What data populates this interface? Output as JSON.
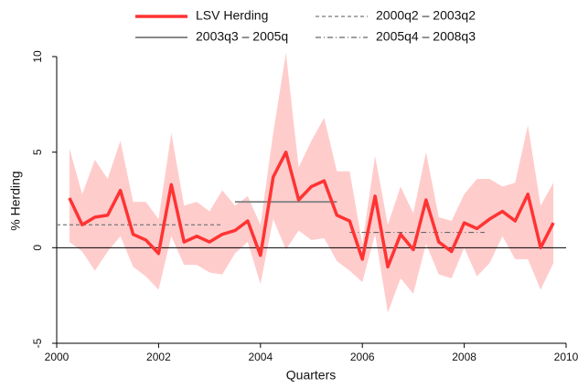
{
  "chart_data": {
    "type": "line",
    "x_label": "Quarters",
    "y_label": "% Herding",
    "xlim": [
      2000,
      2010
    ],
    "xticks": [
      2000,
      2002,
      2004,
      2006,
      2008,
      2010
    ],
    "ylim": [
      -5,
      10
    ],
    "yticks": [
      -5,
      0,
      5,
      10
    ],
    "x": [
      2000.25,
      2000.5,
      2000.75,
      2001,
      2001.25,
      2001.5,
      2001.75,
      2002,
      2002.25,
      2002.5,
      2002.75,
      2003,
      2003.25,
      2003.5,
      2003.75,
      2004,
      2004.25,
      2004.5,
      2004.75,
      2005,
      2005.25,
      2005.5,
      2005.75,
      2006,
      2006.25,
      2006.5,
      2006.75,
      2007,
      2007.25,
      2007.5,
      2007.75,
      2008,
      2008.25,
      2008.5,
      2008.75,
      2009,
      2009.25,
      2009.5,
      2009.75
    ],
    "series": [
      {
        "name": "LSV Herding",
        "color": "#ff3333",
        "values": [
          2.6,
          1.2,
          1.6,
          1.7,
          3.0,
          0.7,
          0.4,
          -0.3,
          3.3,
          0.3,
          0.6,
          0.3,
          0.7,
          0.9,
          1.4,
          -0.4,
          3.7,
          5.0,
          2.5,
          3.2,
          3.5,
          1.7,
          1.4,
          -0.6,
          2.7,
          -1.0,
          0.7,
          -0.1,
          2.5,
          0.3,
          -0.2,
          1.3,
          1.0,
          1.5,
          1.9,
          1.4,
          2.8,
          0.0,
          1.3
        ]
      }
    ],
    "band": {
      "color": "#ffcccc",
      "upper": [
        5.2,
        2.8,
        4.6,
        3.6,
        5.6,
        2.4,
        2.4,
        1.5,
        6.0,
        2.2,
        2.4,
        1.9,
        3.0,
        2.2,
        2.7,
        1.2,
        6.0,
        10.2,
        4.2,
        5.6,
        6.8,
        4.0,
        4.0,
        0.2,
        4.8,
        1.2,
        3.2,
        1.8,
        5.0,
        1.6,
        1.4,
        2.8,
        3.6,
        3.6,
        3.2,
        3.4,
        6.4,
        2.2,
        3.4
      ],
      "lower": [
        0.3,
        -0.2,
        -1.2,
        -0.2,
        0.6,
        -1.0,
        -1.5,
        -2.2,
        0.6,
        -0.9,
        -0.9,
        -1.3,
        -1.4,
        -0.3,
        0.3,
        -1.9,
        1.5,
        -0.1,
        0.9,
        0.4,
        0.5,
        -0.7,
        -1.2,
        -1.8,
        0.7,
        -3.4,
        -1.6,
        -2.4,
        0.2,
        -1.4,
        -1.6,
        0.0,
        -1.5,
        -0.8,
        0.6,
        -0.6,
        -0.6,
        -2.2,
        -0.8
      ]
    },
    "reference_lines": [
      {
        "name": "2000q2 – 2003q2",
        "color": "#777777",
        "dash": "4,3",
        "x": [
          2000,
          2003.25
        ],
        "value": 1.2
      },
      {
        "name": "2003q3 – 2005q",
        "color": "#888888",
        "dash": "none",
        "x": [
          2003.5,
          2005.5
        ],
        "value": 2.4
      },
      {
        "name": "2005q4 – 2008q3",
        "color": "#666666",
        "dash": "6,3,1,3",
        "x": [
          2005.75,
          2008.4
        ],
        "value": 0.8
      }
    ]
  }
}
